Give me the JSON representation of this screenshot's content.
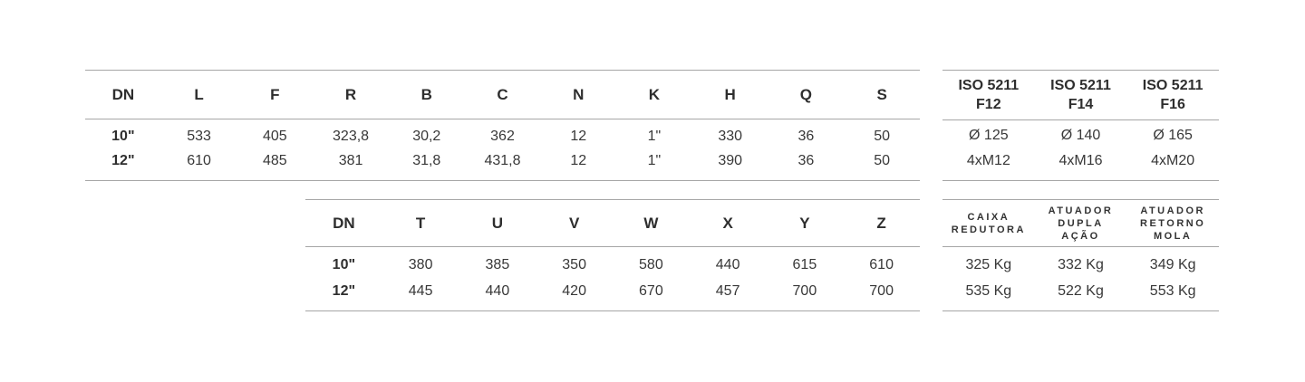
{
  "theme": {
    "background_color": "#ffffff",
    "rule_color": "#a6a6a6",
    "text_color": "#383838"
  },
  "table1": {
    "main": {
      "headers": [
        "DN",
        "L",
        "F",
        "R",
        "B",
        "C",
        "N",
        "K",
        "H",
        "Q",
        "S"
      ],
      "rows": [
        [
          "10\"",
          "533",
          "405",
          "323,8",
          "30,2",
          "362",
          "12",
          "1\"",
          "330",
          "36",
          "50"
        ],
        [
          "12\"",
          "610",
          "485",
          "381",
          "31,8",
          "431,8",
          "12",
          "1\"",
          "390",
          "36",
          "50"
        ]
      ]
    },
    "iso": {
      "headers": [
        [
          "ISO 5211",
          "F12"
        ],
        [
          "ISO 5211",
          "F14"
        ],
        [
          "ISO 5211",
          "F16"
        ]
      ],
      "rows": [
        [
          "Ø 125",
          "Ø 140",
          "Ø 165"
        ],
        [
          "4xM12",
          "4xM16",
          "4xM20"
        ]
      ]
    }
  },
  "table2": {
    "main": {
      "headers": [
        "DN",
        "T",
        "U",
        "V",
        "W",
        "X",
        "Y",
        "Z"
      ],
      "rows": [
        [
          "10\"",
          "380",
          "385",
          "350",
          "580",
          "440",
          "615",
          "610"
        ],
        [
          "12\"",
          "445",
          "440",
          "420",
          "670",
          "457",
          "700",
          "700"
        ]
      ]
    },
    "right": {
      "headers": [
        [
          "CAIXA",
          "REDUTORA"
        ],
        [
          "ATUADOR",
          "DUPLA",
          "AÇÃO"
        ],
        [
          "ATUADOR",
          "RETORNO",
          "MOLA"
        ]
      ],
      "rows": [
        [
          "325 Kg",
          "332 Kg",
          "349 Kg"
        ],
        [
          "535 Kg",
          "522 Kg",
          "553 Kg"
        ]
      ]
    }
  }
}
